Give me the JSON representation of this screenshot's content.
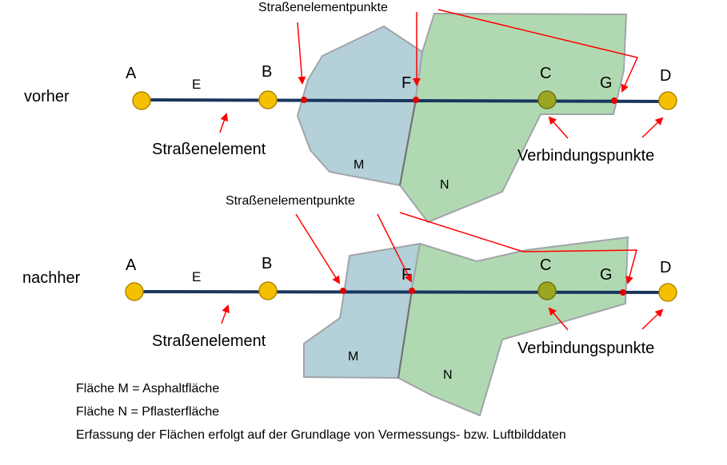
{
  "before": {
    "state_label": "vorher",
    "points": {
      "A": "A",
      "B": "B",
      "C": "C",
      "D": "D",
      "F": "F",
      "G": "G"
    },
    "edge_label": "E",
    "area_m": "M",
    "area_n": "N",
    "road_element_label": "Straßenelement",
    "road_element_points_label": "Straßenelementpunkte",
    "connection_points_label": "Verbindungspunkte"
  },
  "after": {
    "state_label": "nachher",
    "points": {
      "A": "A",
      "B": "B",
      "C": "C",
      "D": "D",
      "F": "F",
      "G": "G"
    },
    "edge_label": "E",
    "area_m": "M",
    "area_n": "N",
    "road_element_label": "Straßenelement",
    "road_element_points_label": "Straßenelementpunkte",
    "connection_points_label": "Verbindungspunkte"
  },
  "legend": {
    "line1": "Fläche M = Asphaltfläche",
    "line2": "Fläche N = Pflasterfläche",
    "line3": "Erfassung der Flächen erfolgt auf der Grundlage von Vermessungs- bzw. Luftbilddaten"
  },
  "colors": {
    "area_m_fill": "#b4d0d8",
    "area_n_fill": "#b1d9b1",
    "area_stroke": "#a0a4a8",
    "road_line": "#17365d",
    "node_fill": "#f5c000",
    "connection_node_fill": "#9ba51f",
    "arrow": "#ff0000",
    "small_point": "#e00000"
  }
}
